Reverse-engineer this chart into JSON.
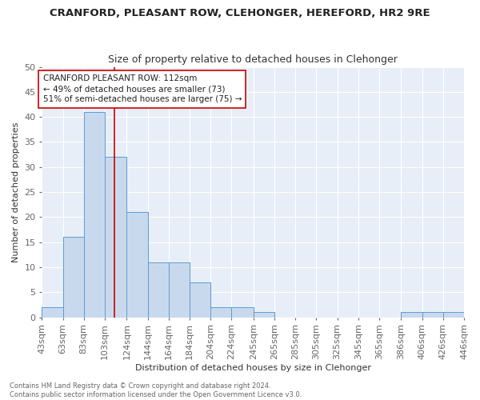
{
  "title": "CRANFORD, PLEASANT ROW, CLEHONGER, HEREFORD, HR2 9RE",
  "subtitle": "Size of property relative to detached houses in Clehonger",
  "xlabel": "Distribution of detached houses by size in Clehonger",
  "ylabel": "Number of detached properties",
  "bar_color": "#c9d9ed",
  "bar_edge_color": "#5b9bd5",
  "background_color": "#e8eef7",
  "grid_color": "#ffffff",
  "annotation_text": "CRANFORD PLEASANT ROW: 112sqm\n← 49% of detached houses are smaller (73)\n51% of semi-detached houses are larger (75) →",
  "property_line_x": 112,
  "property_line_color": "#cc0000",
  "footer": "Contains HM Land Registry data © Crown copyright and database right 2024.\nContains public sector information licensed under the Open Government Licence v3.0.",
  "bins": [
    43,
    63,
    83,
    103,
    124,
    144,
    164,
    184,
    204,
    224,
    245,
    265,
    285,
    305,
    325,
    345,
    365,
    386,
    406,
    426,
    446
  ],
  "counts": [
    2,
    16,
    41,
    32,
    21,
    11,
    11,
    7,
    2,
    2,
    1,
    0,
    0,
    0,
    0,
    0,
    0,
    1,
    1,
    1
  ],
  "ylim": [
    0,
    50
  ],
  "yticks": [
    0,
    5,
    10,
    15,
    20,
    25,
    30,
    35,
    40,
    45,
    50
  ]
}
